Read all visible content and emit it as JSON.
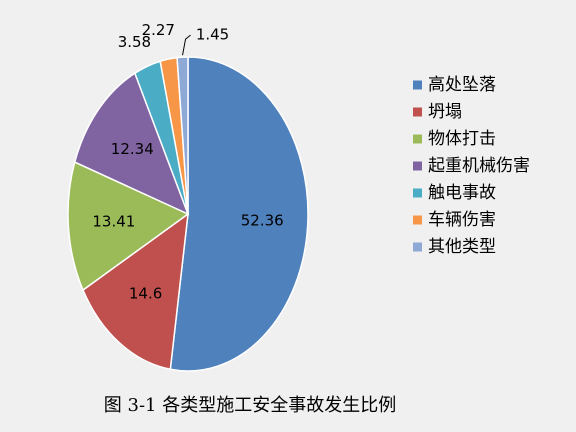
{
  "chart_data": {
    "type": "pie",
    "title": "图 3-1 各类型施工安全事故发生比例",
    "categories": [
      "高处坠落",
      "坍塌",
      "物体打击",
      "起重机械伤害",
      "触电事故",
      "车辆伤害",
      "其他类型"
    ],
    "values": [
      52.36,
      14.6,
      13.41,
      12.34,
      3.58,
      2.27,
      1.45
    ],
    "colors": [
      "#4f81bd",
      "#c0504d",
      "#9bbb59",
      "#8064a2",
      "#4bacc6",
      "#f79646",
      "#8ea9d6"
    ],
    "legend": "right"
  }
}
